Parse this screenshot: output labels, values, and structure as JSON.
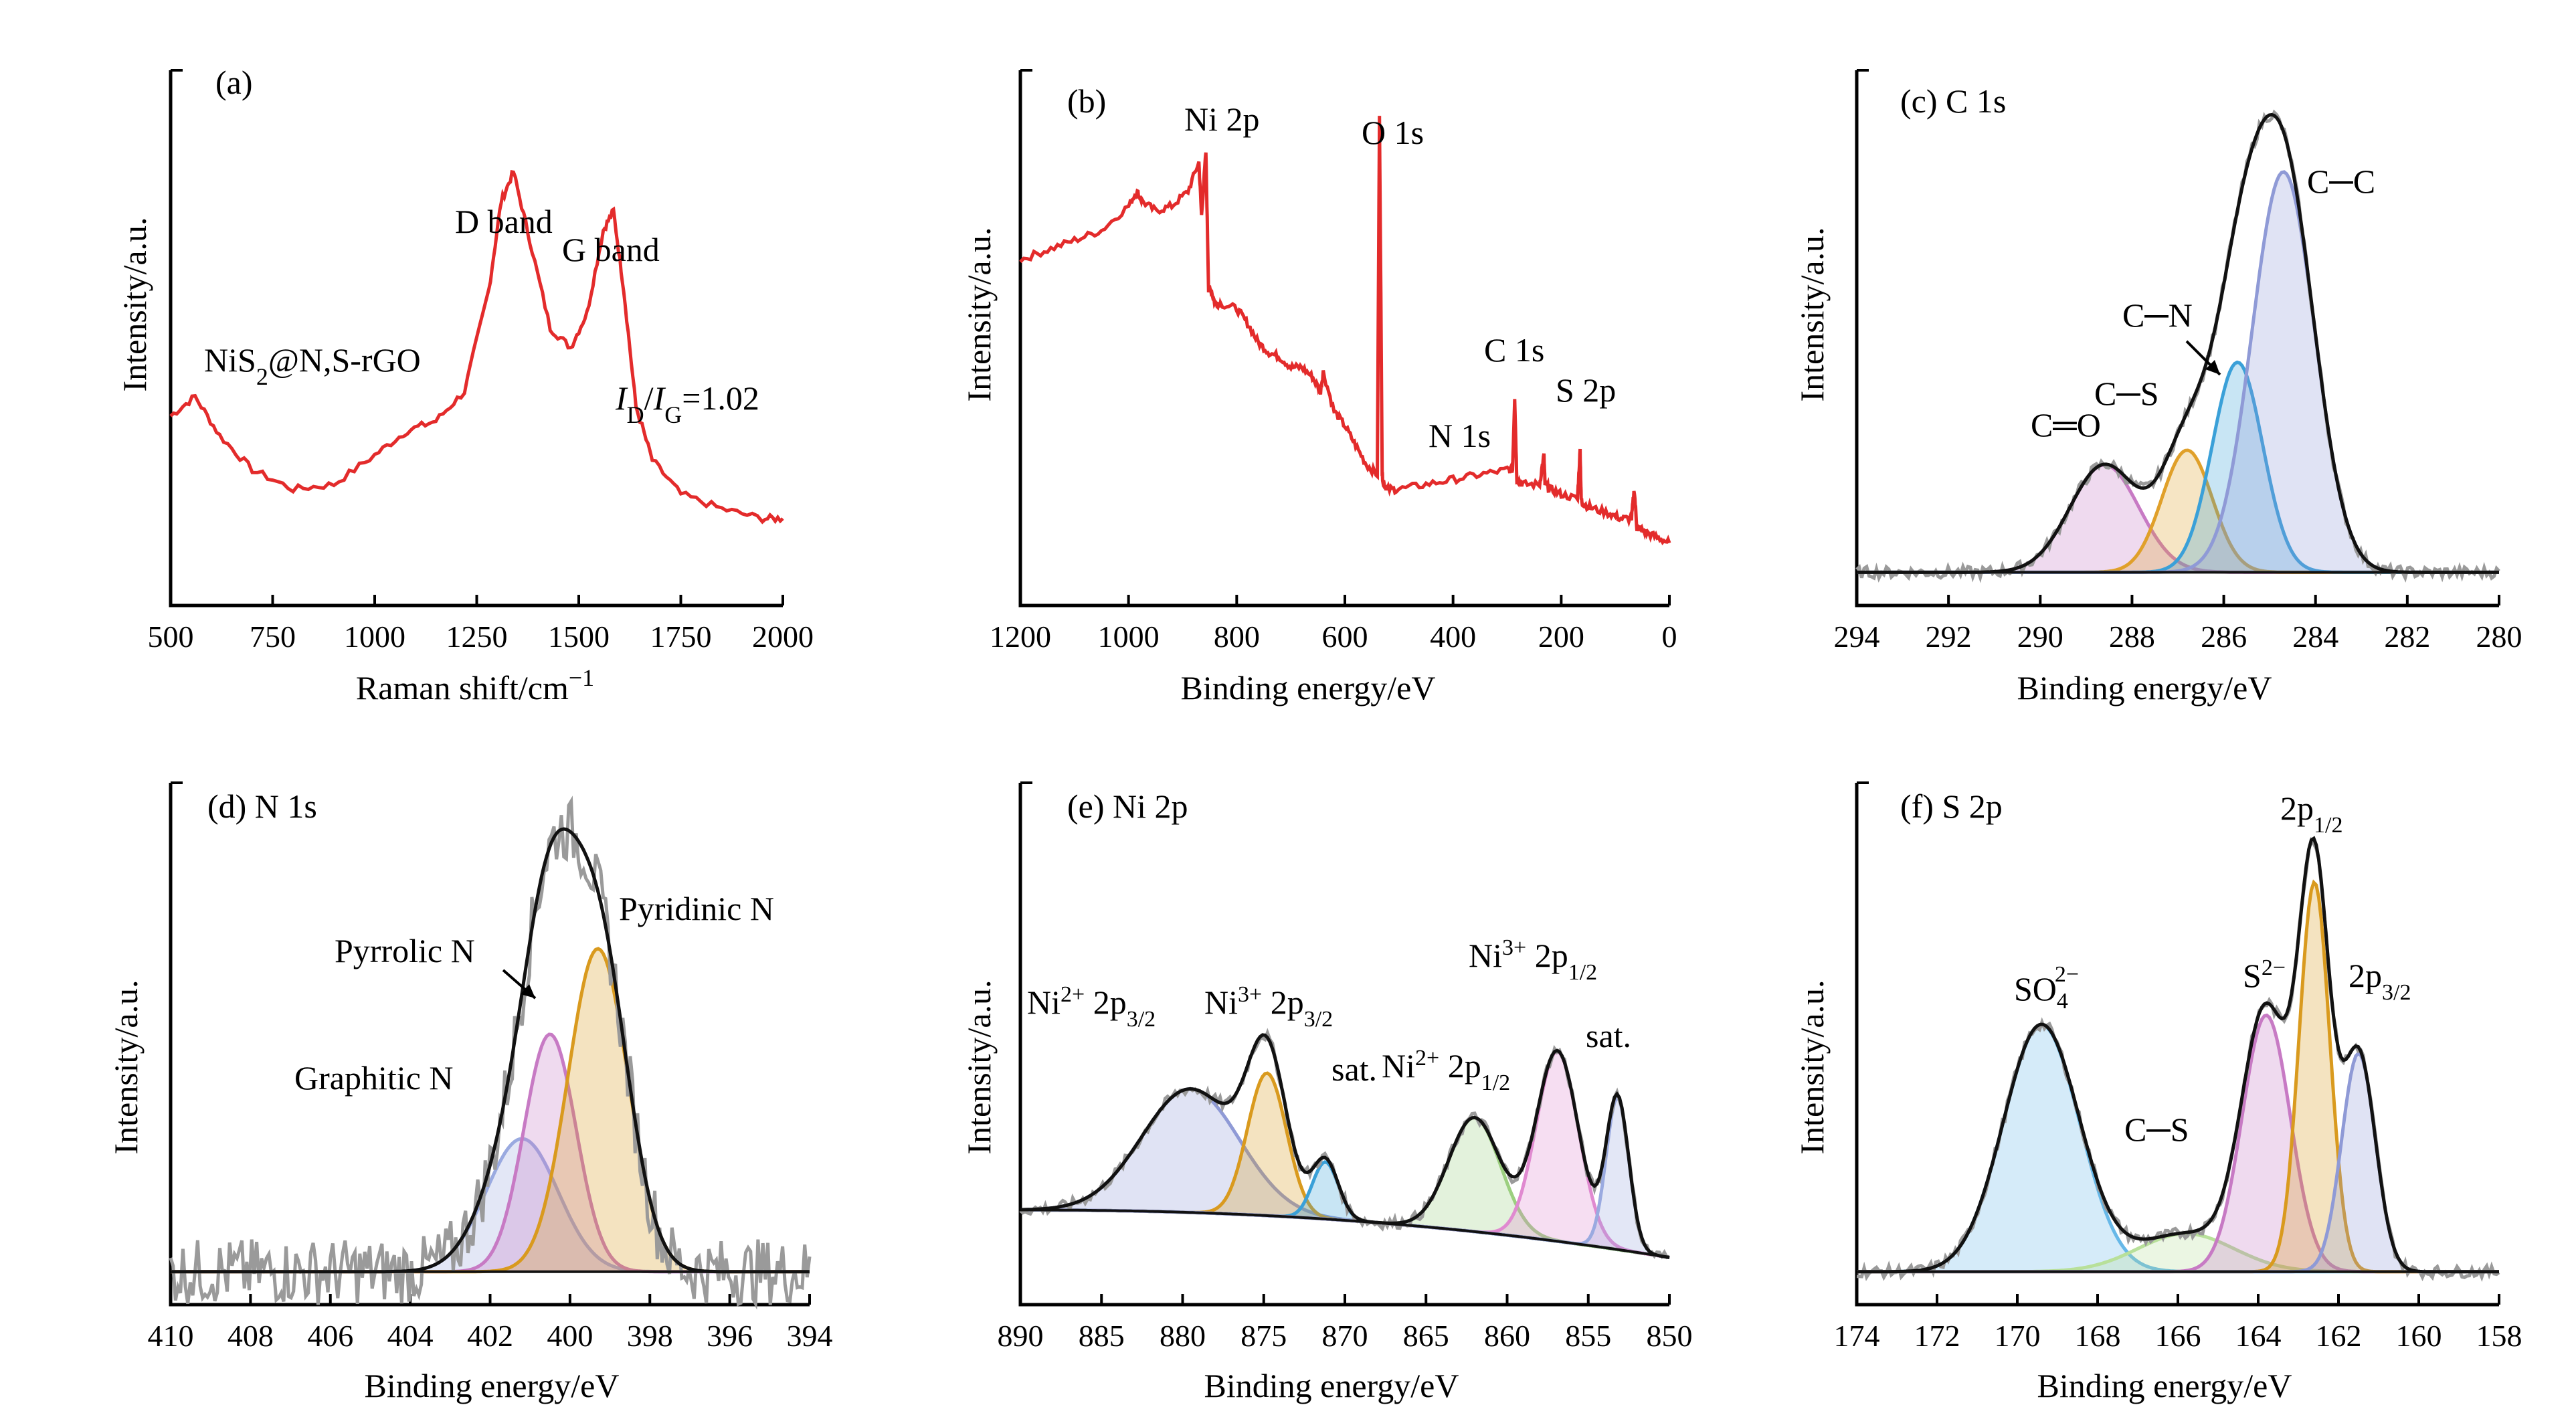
{
  "chart_data": [
    {
      "panel": "(a)",
      "type": "line",
      "xlabel": "Raman shift/cm⁻¹",
      "ylabel": "Intensity/a.u.",
      "xlim": [
        500,
        2000
      ],
      "xticks": [
        500,
        750,
        1000,
        1250,
        1500,
        1750,
        2000
      ],
      "color": "#e32b2b",
      "series": [
        {
          "x": [
            500,
            560,
            620,
            700,
            800,
            900,
            1000,
            1080,
            1150,
            1220,
            1280,
            1310,
            1340,
            1380,
            1430,
            1480,
            1520,
            1560,
            1585,
            1610,
            1640,
            1680,
            1750,
            1850,
            1950,
            2000
          ],
          "y": [
            0.34,
            0.38,
            0.3,
            0.23,
            0.19,
            0.2,
            0.26,
            0.31,
            0.33,
            0.39,
            0.6,
            0.78,
            0.84,
            0.7,
            0.52,
            0.48,
            0.55,
            0.72,
            0.76,
            0.6,
            0.36,
            0.25,
            0.18,
            0.15,
            0.13,
            0.13
          ]
        }
      ],
      "annotations": [
        "NiS₂@N,S-rGO",
        "D band",
        "G band",
        "I_D/I_G=1.02"
      ]
    },
    {
      "panel": "(b)",
      "type": "line",
      "xlabel": "Binding energy/eV",
      "ylabel": "Intensity/a.u.",
      "xlim": [
        1200,
        0
      ],
      "xticks": [
        1200,
        1000,
        800,
        600,
        400,
        200,
        0
      ],
      "color": "#e32b2b",
      "series": [
        {
          "x": [
            1200,
            1150,
            1100,
            1050,
            1000,
            985,
            975,
            950,
            920,
            890,
            870,
            865,
            857,
            852,
            848,
            840,
            830,
            800,
            780,
            760,
            740,
            720,
            700,
            680,
            660,
            645,
            640,
            620,
            600,
            580,
            560,
            540,
            536,
            531,
            528,
            520,
            500,
            450,
            400,
            350,
            300,
            290,
            286,
            282,
            270,
            240,
            232,
            230,
            220,
            200,
            170,
            165,
            163,
            160,
            140,
            110,
            90,
            70,
            65,
            60,
            55,
            40,
            20,
            0
          ],
          "y": [
            0.66,
            0.68,
            0.7,
            0.72,
            0.77,
            0.8,
            0.78,
            0.76,
            0.77,
            0.8,
            0.86,
            0.75,
            0.88,
            0.6,
            0.6,
            0.57,
            0.57,
            0.56,
            0.53,
            0.49,
            0.47,
            0.46,
            0.44,
            0.44,
            0.42,
            0.39,
            0.43,
            0.35,
            0.32,
            0.28,
            0.24,
            0.22,
            0.96,
            0.22,
            0.2,
            0.19,
            0.19,
            0.2,
            0.21,
            0.22,
            0.23,
            0.23,
            0.38,
            0.21,
            0.2,
            0.2,
            0.26,
            0.2,
            0.19,
            0.18,
            0.17,
            0.27,
            0.17,
            0.16,
            0.15,
            0.14,
            0.13,
            0.13,
            0.19,
            0.11,
            0.11,
            0.1,
            0.09,
            0.08
          ]
        }
      ],
      "annotations": [
        "Ni 2p",
        "O 1s",
        "C 1s",
        "N 1s",
        "S 2p"
      ]
    },
    {
      "panel": "(c) C 1s",
      "type": "area",
      "xlabel": "Binding energy/eV",
      "ylabel": "Intensity/a.u.",
      "xlim": [
        294,
        280
      ],
      "xticks": [
        294,
        292,
        290,
        288,
        286,
        284,
        282,
        280
      ],
      "peaks": [
        {
          "name": "C═O",
          "center": 288.6,
          "height": 0.22,
          "width": 0.75,
          "color": "#c77ac4"
        },
        {
          "name": "C─S",
          "center": 286.8,
          "height": 0.25,
          "width": 0.55,
          "color": "#e0a02a"
        },
        {
          "name": "C─N",
          "center": 285.7,
          "height": 0.43,
          "width": 0.55,
          "color": "#3aa0d8"
        },
        {
          "name": "C─C",
          "center": 284.7,
          "height": 0.82,
          "width": 0.68,
          "color": "#8f9ad6"
        }
      ]
    },
    {
      "panel": "(d) N 1s",
      "type": "area",
      "xlabel": "Binding energy/eV",
      "ylabel": "Intensity/a.u.",
      "xlim": [
        410,
        394
      ],
      "xticks": [
        410,
        408,
        406,
        404,
        402,
        400,
        398,
        396,
        394
      ],
      "peaks": [
        {
          "name": "Graphitic N",
          "center": 401.2,
          "height": 0.28,
          "width": 0.9,
          "color": "#9aaae0"
        },
        {
          "name": "Pyrrolic N",
          "center": 400.5,
          "height": 0.5,
          "width": 0.65,
          "color": "#c77ac4"
        },
        {
          "name": "Pyridinic N",
          "center": 399.3,
          "height": 0.68,
          "width": 0.75,
          "color": "#d99a1e"
        }
      ]
    },
    {
      "panel": "(e) Ni 2p",
      "type": "area",
      "xlabel": "Binding energy/eV",
      "ylabel": "Intensity/a.u.",
      "xlim": [
        890,
        850
      ],
      "xticks": [
        890,
        885,
        880,
        875,
        870,
        865,
        860,
        855,
        850
      ],
      "peaks": [
        {
          "name": "Ni²⁺ 2p₃/₂",
          "center": 879.5,
          "height": 0.26,
          "width": 3.0,
          "color": "#8f9ad6"
        },
        {
          "name": "Ni³⁺ 2p₃/₂",
          "center": 874.8,
          "height": 0.3,
          "width": 1.2,
          "color": "#d99a1e"
        },
        {
          "name": "sat.",
          "center": 871.2,
          "height": 0.12,
          "width": 0.8,
          "color": "#3aa0d8"
        },
        {
          "name": "Ni²⁺ 2p₁/₂",
          "center": 862.0,
          "height": 0.24,
          "width": 1.6,
          "color": "#9ccf80"
        },
        {
          "name": "Ni³⁺ 2p₁/₂",
          "center": 856.9,
          "height": 0.4,
          "width": 1.3,
          "color": "#e08ad0"
        },
        {
          "name": "sat.",
          "center": 853.2,
          "height": 0.32,
          "width": 0.7,
          "color": "#9aaae0"
        }
      ]
    },
    {
      "panel": "(f) S 2p",
      "type": "area",
      "xlabel": "Binding energy/eV",
      "ylabel": "Intensity/a.u.",
      "xlim": [
        174,
        158
      ],
      "xticks": [
        174,
        172,
        170,
        168,
        166,
        164,
        162,
        160,
        158
      ],
      "peaks": [
        {
          "name": "SO₄²⁻",
          "center": 169.4,
          "height": 0.52,
          "width": 0.95,
          "color": "#67b8e8"
        },
        {
          "name": "C─S",
          "center": 165.8,
          "height": 0.08,
          "width": 1.2,
          "color": "#b8e09a"
        },
        {
          "name": "S²⁻",
          "center": 163.8,
          "height": 0.54,
          "width": 0.6,
          "color": "#c77ac4"
        },
        {
          "name": "2p₁/₂",
          "center": 162.6,
          "height": 0.82,
          "width": 0.38,
          "color": "#d99a1e"
        },
        {
          "name": "2p₃/₂",
          "center": 161.5,
          "height": 0.46,
          "width": 0.42,
          "color": "#8f9ad6"
        }
      ]
    }
  ],
  "labels": {
    "a_panel": "(a)",
    "a_sample_pre": "NiS",
    "a_sample_sub": "2",
    "a_sample_post": "@N,S-rGO",
    "a_dband": "D band",
    "a_gband": "G band",
    "a_ratio_i1": "I",
    "a_ratio_s1": "D",
    "a_ratio_slash": "/",
    "a_ratio_i2": "I",
    "a_ratio_s2": "G",
    "a_ratio_val": "=1.02",
    "a_xlabel": "Raman shift/cm",
    "a_xlabel_sup": "−1",
    "b_panel": "(b)",
    "b_ni2p": "Ni 2p",
    "b_o1s": "O 1s",
    "b_c1s": "C 1s",
    "b_n1s": "N 1s",
    "b_s2p": "S 2p",
    "c_panel": "(c) C 1s",
    "c_cc": "C─C",
    "c_cn": "C─N",
    "c_cs": "C─S",
    "c_co": "C═O",
    "d_panel": "(d) N 1s",
    "d_pyridinic": "Pyridinic N",
    "d_pyrrolic": "Pyrrolic N",
    "d_graphitic": "Graphitic N",
    "e_panel": "(e) Ni 2p",
    "e_l1_a": "Ni",
    "e_l1_sup": "2+",
    "e_l1_b": " 2p",
    "e_l1_sub": "3/2",
    "e_l2_a": "Ni",
    "e_l2_sup": "3+",
    "e_l2_b": " 2p",
    "e_l2_sub": "3/2",
    "e_sat1": "sat.",
    "e_l3_a": "Ni",
    "e_l3_sup": "2+",
    "e_l3_b": " 2p",
    "e_l3_sub": "1/2",
    "e_l4_a": "Ni",
    "e_l4_sup": "3+",
    "e_l4_b": " 2p",
    "e_l4_sub": "1/2",
    "e_sat2": "sat.",
    "f_panel": "(f) S 2p",
    "f_so4_a": "SO",
    "f_so4_sub": "4",
    "f_so4_sup": "2−",
    "f_cs": "C─S",
    "f_s2_a": "S",
    "f_s2_sup": "2−",
    "f_2p12_a": "2p",
    "f_2p12_sub": "1/2",
    "f_2p32_a": "2p",
    "f_2p32_sub": "3/2",
    "ylabel": "Intensity/a.u.",
    "xlabel_be": "Binding energy/eV"
  }
}
